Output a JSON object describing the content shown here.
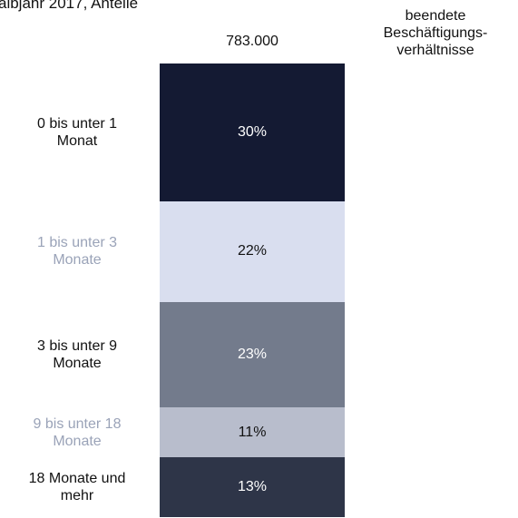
{
  "chart_data": {
    "type": "stacked-bar",
    "title": "albjahr 2017, Anteile",
    "total_label": "783.000",
    "bar_label": "beendete\nBeschäftigungs-\nverhältnisse",
    "series": [
      {
        "name": "0 bis unter 1\nMonat",
        "color": "#141a33",
        "label_color": "#111111",
        "text_color": "#ffffff",
        "values": [
          30
        ],
        "value_labels": [
          "30%"
        ]
      },
      {
        "name": "1 bis unter 3\nMonate",
        "color": "#d9deef",
        "label_color": "#9aa3b8",
        "text_color": "#111111",
        "values": [
          22
        ],
        "value_labels": [
          "22%"
        ]
      },
      {
        "name": "3  bis unter 9\nMonate",
        "color": "#737b8c",
        "label_color": "#111111",
        "text_color": "#ffffff",
        "values": [
          23
        ],
        "value_labels": [
          "23%"
        ]
      },
      {
        "name": "9 bis unter 18\nMonate",
        "color": "#b8bdcc",
        "label_color": "#9aa3b8",
        "text_color": "#111111",
        "values": [
          11
        ],
        "value_labels": [
          "11%"
        ]
      },
      {
        "name": "18 Monate und\nmehr",
        "color": "#2e3548",
        "label_color": "#111111",
        "text_color": "#ffffff",
        "values": [
          13
        ],
        "value_labels": [
          "13%"
        ]
      }
    ]
  }
}
